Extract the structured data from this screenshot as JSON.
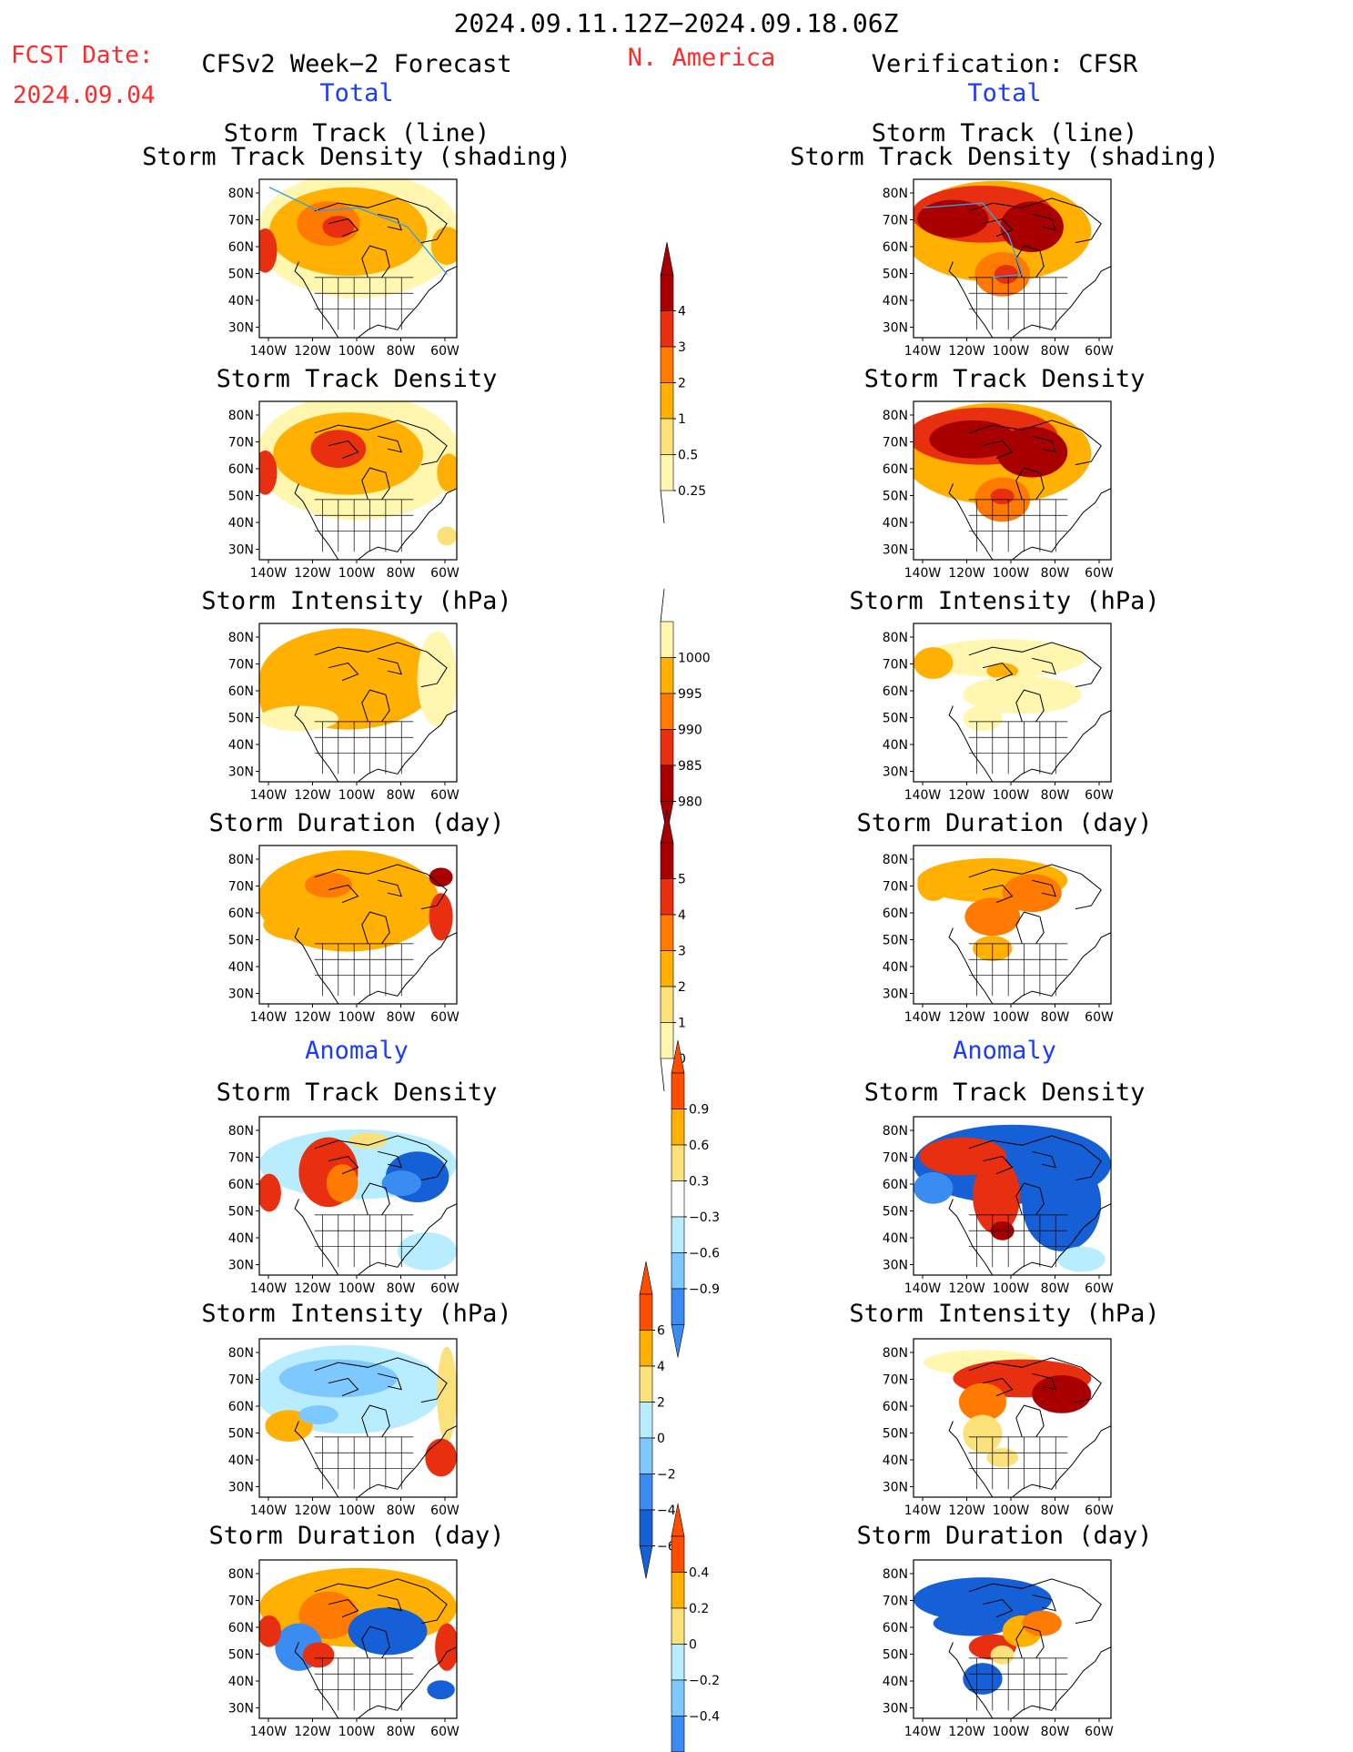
{
  "header": {
    "period": "2024.09.11.12Z−2024.09.18.06Z",
    "fcst_label": "FCST Date:",
    "fcst_date": "2024.09.04",
    "left_title": "CFSv2 Week−2 Forecast",
    "region": "N. America",
    "right_title": "Verification: CFSR"
  },
  "sections": {
    "total_left": "Total",
    "total_right": "Total",
    "anomaly_left": "Anomaly",
    "anomaly_right": "Anomaly"
  },
  "panel_titles": {
    "track_line": "Storm Track (line)",
    "track_shading": "Storm Track Density (shading)",
    "density": "Storm Track Density",
    "intensity": "Storm Intensity (hPa)",
    "duration": "Storm Duration (day)"
  },
  "colors": {
    "c1": "#fff7b0",
    "c2": "#fbe17a",
    "c3": "#ffb000",
    "c4": "#ff7a00",
    "c5": "#e83010",
    "c6": "#a80000",
    "b1": "#b8ecff",
    "b2": "#7cc8ff",
    "b3": "#3a8cf0",
    "b4": "#1560d6",
    "track_line": "#3aa0e0"
  },
  "chart_data": [
    {
      "type": "heatmap",
      "id": "map_axes",
      "xticks": [
        "140W",
        "120W",
        "100W",
        "80W",
        "60W"
      ],
      "yticks": [
        "80N",
        "70N",
        "60N",
        "50N",
        "40N",
        "30N"
      ],
      "xlim": [
        -145,
        -55
      ],
      "ylim": [
        25,
        85
      ]
    },
    {
      "type": "heatmap",
      "id": "cb_density",
      "ticks": [
        "4",
        "3",
        "2",
        "1",
        "0.5",
        "0.25"
      ],
      "colors": [
        "#a80000",
        "#e83010",
        "#ff7a00",
        "#ffb000",
        "#fbe17a",
        "#fff7b0"
      ]
    },
    {
      "type": "heatmap",
      "id": "cb_intensity",
      "ticks": [
        "1000",
        "995",
        "990",
        "985",
        "980"
      ],
      "colors": [
        "#fff7b0",
        "#ffb000",
        "#ff7a00",
        "#e83010",
        "#a80000"
      ]
    },
    {
      "type": "heatmap",
      "id": "cb_duration",
      "ticks": [
        "5",
        "4",
        "3",
        "2",
        "1",
        "0"
      ],
      "colors": [
        "#a80000",
        "#e83010",
        "#ff7a00",
        "#ffb000",
        "#fbe17a",
        "#fff7b0"
      ]
    },
    {
      "type": "heatmap",
      "id": "cb_anom_density",
      "ticks": [
        "0.9",
        "0.6",
        "0.3",
        "−0.3",
        "−0.6",
        "−0.9"
      ],
      "colors": [
        "#ff4d00",
        "#ffb000",
        "#fbe17a",
        "#ffffff",
        "#b8ecff",
        "#7cc8ff",
        "#3a8cf0"
      ]
    },
    {
      "type": "heatmap",
      "id": "cb_anom_intensity",
      "ticks": [
        "6",
        "4",
        "2",
        "0",
        "−2",
        "−4",
        "−6"
      ],
      "colors": [
        "#ff4d00",
        "#ffb000",
        "#fbe17a",
        "#b8ecff",
        "#7cc8ff",
        "#3a8cf0",
        "#1560d6"
      ]
    },
    {
      "type": "heatmap",
      "id": "cb_anom_duration",
      "ticks": [
        "0.4",
        "0.2",
        "0",
        "−0.2",
        "−0.4"
      ],
      "colors": [
        "#ff4d00",
        "#ffb000",
        "#fbe17a",
        "#b8ecff",
        "#7cc8ff",
        "#3a8cf0"
      ]
    }
  ]
}
